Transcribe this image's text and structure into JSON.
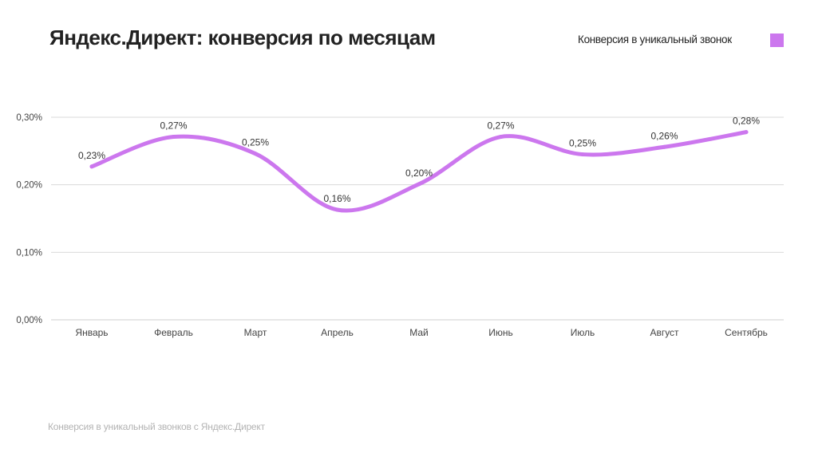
{
  "title": "Яндекс.Директ: конверсия по месяцам",
  "footnote": "Конверсия в уникальный звонков с Яндекс.Директ",
  "colors": {
    "series": "#cc77ee",
    "grid": "#d9d9d9",
    "axis_text": "#444444",
    "title": "#222222",
    "footnote": "#b3b3b3"
  },
  "chart_data": {
    "type": "line",
    "title": "Яндекс.Директ: конверсия по месяцам",
    "xlabel": "",
    "ylabel": "",
    "categories": [
      "Январь",
      "Февраль",
      "Март",
      "Апрель",
      "Май",
      "Июнь",
      "Июль",
      "Август",
      "Сентябрь"
    ],
    "series": [
      {
        "name": "Конверсия в уникальный звонок",
        "values": [
          0.227,
          0.271,
          0.246,
          0.163,
          0.201,
          0.271,
          0.245,
          0.256,
          0.278
        ],
        "labels": [
          "0,23%",
          "0,27%",
          "0,25%",
          "0,16%",
          "0,20%",
          "0,27%",
          "0,25%",
          "0,26%",
          "0,28%"
        ]
      }
    ],
    "ylim": [
      0,
      0.3
    ],
    "yticks": [
      0,
      0.1,
      0.2,
      0.3
    ],
    "ytick_labels": [
      "0,00%",
      "0,10%",
      "0,20%",
      "0,30%"
    ],
    "grid": true,
    "smooth": true,
    "legend_position": "top-right"
  }
}
